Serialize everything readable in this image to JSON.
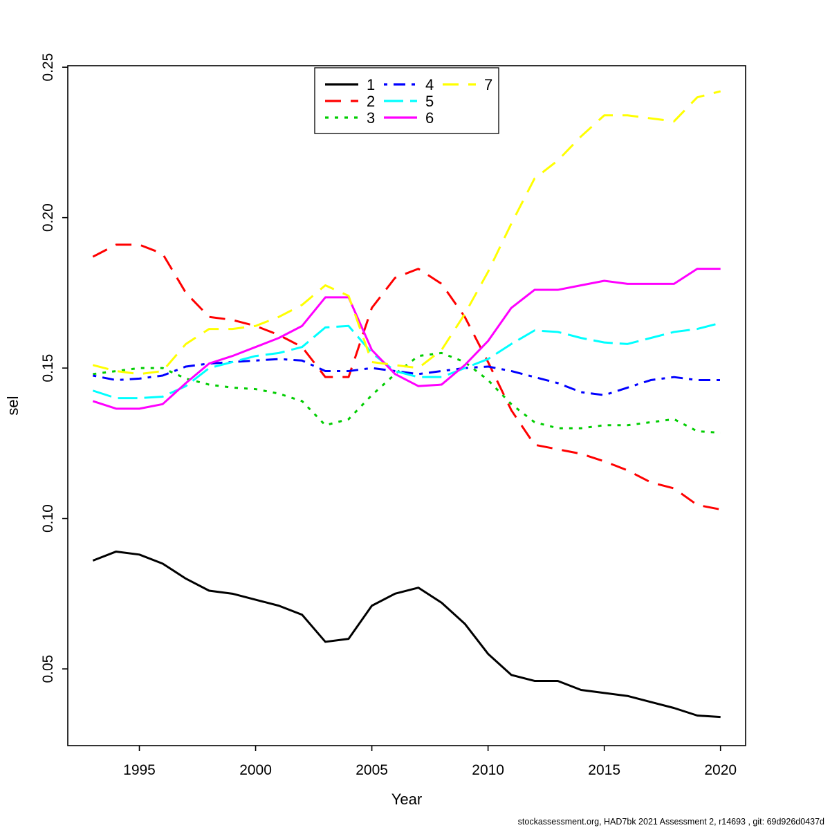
{
  "footer": {
    "text": "stockassessment.org, HAD7bk 2021 Assessment 2, r14693 , git: 69d926d0437d"
  },
  "chart_data": {
    "type": "line",
    "title": "",
    "xlabel": "Year",
    "ylabel": "sel",
    "grid": false,
    "legend_position": "top-center-inside",
    "legend_columns": 3,
    "xlim": [
      1991.92,
      2021.08
    ],
    "ylim": [
      0.0245,
      0.2505
    ],
    "x_tick_values": [
      1995,
      2000,
      2005,
      2010,
      2015,
      2020
    ],
    "x_tick_labels": [
      "1995",
      "2000",
      "2005",
      "2010",
      "2015",
      "2020"
    ],
    "y_tick_values": [
      0.05,
      0.1,
      0.15,
      0.2,
      0.25
    ],
    "y_tick_labels": [
      "0.05",
      "0.10",
      "0.15",
      "0.20",
      "0.25"
    ],
    "x": [
      1993,
      1994,
      1995,
      1996,
      1997,
      1998,
      1999,
      2000,
      2001,
      2002,
      2003,
      2004,
      2005,
      2006,
      2007,
      2008,
      2009,
      2010,
      2011,
      2012,
      2013,
      2014,
      2015,
      2016,
      2017,
      2018,
      2019,
      2020
    ],
    "series": [
      {
        "name": "1",
        "color": "#000000",
        "linestyle": "solid",
        "values": [
          0.086,
          0.089,
          0.088,
          0.085,
          0.08,
          0.076,
          0.075,
          0.073,
          0.071,
          0.068,
          0.059,
          0.06,
          0.071,
          0.075,
          0.077,
          0.072,
          0.065,
          0.055,
          0.048,
          0.046,
          0.046,
          0.043,
          0.042,
          0.041,
          0.039,
          0.037,
          0.0345,
          0.034
        ]
      },
      {
        "name": "2",
        "color": "#FF0000",
        "linestyle": "dashed",
        "values": [
          0.187,
          0.191,
          0.191,
          0.188,
          0.175,
          0.167,
          0.166,
          0.164,
          0.161,
          0.157,
          0.147,
          0.147,
          0.17,
          0.18,
          0.183,
          0.178,
          0.167,
          0.152,
          0.136,
          0.1245,
          0.123,
          0.1215,
          0.119,
          0.116,
          0.112,
          0.11,
          0.1045,
          0.103
        ]
      },
      {
        "name": "3",
        "color": "#00CD00",
        "linestyle": "dotted",
        "values": [
          0.148,
          0.149,
          0.15,
          0.15,
          0.1465,
          0.1445,
          0.1435,
          0.143,
          0.1415,
          0.139,
          0.131,
          0.133,
          0.141,
          0.148,
          0.154,
          0.155,
          0.152,
          0.146,
          0.138,
          0.132,
          0.13,
          0.13,
          0.131,
          0.131,
          0.132,
          0.133,
          0.129,
          0.1285
        ]
      },
      {
        "name": "4",
        "color": "#0000FF",
        "linestyle": "dotdash",
        "values": [
          0.1475,
          0.146,
          0.1465,
          0.1475,
          0.1505,
          0.1515,
          0.152,
          0.1525,
          0.153,
          0.1525,
          0.149,
          0.149,
          0.15,
          0.149,
          0.148,
          0.149,
          0.15,
          0.1505,
          0.149,
          0.147,
          0.145,
          0.142,
          0.141,
          0.1435,
          0.146,
          0.147,
          0.146,
          0.146
        ]
      },
      {
        "name": "5",
        "color": "#00FFFF",
        "linestyle": "longdash",
        "values": [
          0.1425,
          0.14,
          0.14,
          0.1405,
          0.144,
          0.15,
          0.152,
          0.154,
          0.155,
          0.157,
          0.1635,
          0.164,
          0.155,
          0.149,
          0.147,
          0.147,
          0.15,
          0.153,
          0.158,
          0.1625,
          0.162,
          0.16,
          0.1585,
          0.158,
          0.16,
          0.162,
          0.163,
          0.165
        ]
      },
      {
        "name": "6",
        "color": "#FF00FF",
        "linestyle": "solid",
        "values": [
          0.139,
          0.1365,
          0.1365,
          0.138,
          0.145,
          0.1515,
          0.154,
          0.157,
          0.16,
          0.164,
          0.1735,
          0.1735,
          0.156,
          0.148,
          0.144,
          0.1445,
          0.151,
          0.159,
          0.17,
          0.176,
          0.176,
          0.1775,
          0.179,
          0.178,
          0.178,
          0.178,
          0.183,
          0.183
        ]
      },
      {
        "name": "7",
        "color": "#FFFF00",
        "linestyle": "dashed",
        "values": [
          0.151,
          0.149,
          0.148,
          0.149,
          0.158,
          0.163,
          0.163,
          0.164,
          0.167,
          0.171,
          0.1775,
          0.174,
          0.152,
          0.151,
          0.15,
          0.156,
          0.168,
          0.182,
          0.198,
          0.213,
          0.219,
          0.227,
          0.234,
          0.234,
          0.233,
          0.232,
          0.24,
          0.242
        ]
      }
    ]
  }
}
